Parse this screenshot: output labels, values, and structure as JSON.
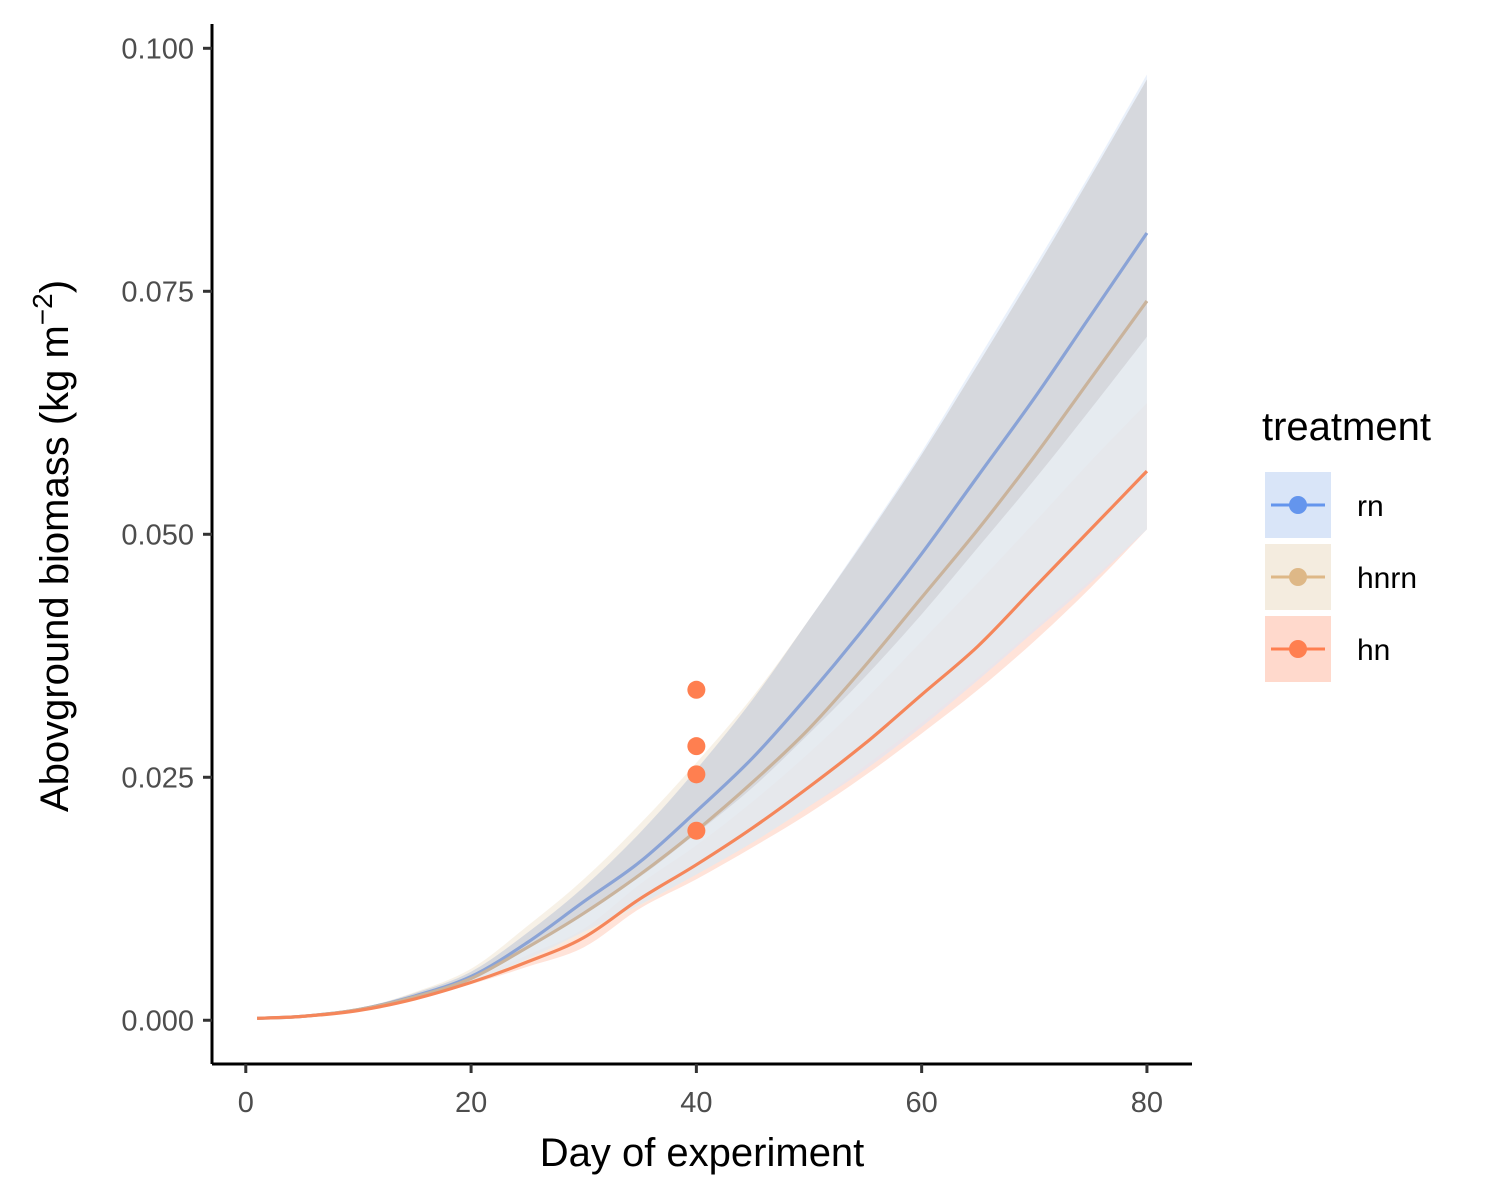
{
  "chart_data": {
    "type": "line",
    "xlabel": "Day of experiment",
    "ylabel_main": "Abovground biomass (kg m",
    "ylabel_sup": "−2",
    "ylabel_close": ")",
    "xlim": [
      -3,
      84
    ],
    "ylim": [
      -0.0045,
      0.1025
    ],
    "x_ticks": [
      0,
      20,
      40,
      60,
      80
    ],
    "x_tick_labels": [
      "0",
      "20",
      "40",
      "60",
      "80"
    ],
    "y_ticks": [
      0,
      0.025,
      0.05,
      0.075,
      0.1
    ],
    "y_tick_labels": [
      "0.000",
      "0.025",
      "0.050",
      "0.075",
      "0.100"
    ],
    "grid": false,
    "legend": {
      "title": "treatment",
      "placement": "right"
    },
    "x": [
      1,
      5,
      10,
      15,
      20,
      25,
      30,
      35,
      40,
      45,
      50,
      55,
      60,
      65,
      70,
      75,
      80
    ],
    "series": [
      {
        "name": "rn",
        "color": "#6495ED",
        "line_color": "#8AA3D6",
        "band_color": "#D9E5F8",
        "values": [
          0.0002,
          0.0004,
          0.0011,
          0.0025,
          0.0045,
          0.008,
          0.0122,
          0.0163,
          0.0215,
          0.027,
          0.0335,
          0.0405,
          0.048,
          0.056,
          0.064,
          0.0725,
          0.081
        ],
        "lower": [
          0.0002,
          0.0004,
          0.0011,
          0.0023,
          0.004,
          0.0063,
          0.0091,
          0.0119,
          0.015,
          0.0183,
          0.022,
          0.0258,
          0.0302,
          0.035,
          0.04,
          0.045,
          0.0505
        ],
        "upper": [
          0.0002,
          0.0004,
          0.0012,
          0.0028,
          0.005,
          0.009,
          0.0137,
          0.0193,
          0.0258,
          0.033,
          0.0412,
          0.0497,
          0.0585,
          0.068,
          0.0775,
          0.0872,
          0.0973
        ]
      },
      {
        "name": "hnrn",
        "color": "#DEB887",
        "line_color": "#C9B39C",
        "band_color": "#F4ECDF",
        "values": [
          0.0002,
          0.0004,
          0.0011,
          0.0024,
          0.0043,
          0.0075,
          0.011,
          0.015,
          0.0195,
          0.0245,
          0.03,
          0.0365,
          0.0435,
          0.0505,
          0.058,
          0.066,
          0.074
        ],
        "lower": [
          0.0002,
          0.0004,
          0.0011,
          0.0023,
          0.0039,
          0.0062,
          0.0088,
          0.0118,
          0.015,
          0.0183,
          0.022,
          0.0262,
          0.0306,
          0.0353,
          0.0403,
          0.0453,
          0.0505
        ],
        "upper": [
          0.0002,
          0.0004,
          0.0012,
          0.0029,
          0.0053,
          0.0097,
          0.0145,
          0.0202,
          0.0265,
          0.0333,
          0.0412,
          0.0495,
          0.0582,
          0.0675,
          0.077,
          0.0868,
          0.0968
        ]
      },
      {
        "name": "hn",
        "color": "#FF7F50",
        "line_color": "#F5865A",
        "band_color": "#FFD9CC",
        "values": [
          0.0002,
          0.0004,
          0.001,
          0.0022,
          0.0039,
          0.006,
          0.0085,
          0.0125,
          0.016,
          0.0198,
          0.024,
          0.0285,
          0.0335,
          0.0385,
          0.0445,
          0.0505,
          0.0565
        ],
        "lower": [
          0.0002,
          0.0004,
          0.001,
          0.0021,
          0.0037,
          0.0055,
          0.0075,
          0.0115,
          0.0145,
          0.0178,
          0.0213,
          0.0252,
          0.0295,
          0.034,
          0.039,
          0.0445,
          0.0505
        ],
        "upper": [
          0.0002,
          0.0004,
          0.0011,
          0.0024,
          0.0043,
          0.0067,
          0.0094,
          0.014,
          0.018,
          0.0225,
          0.0275,
          0.033,
          0.039,
          0.045,
          0.0512,
          0.0575,
          0.0635
        ]
      }
    ],
    "points": {
      "series": "hn",
      "color": "#FF7F50",
      "x": [
        40,
        40,
        40,
        40
      ],
      "y": [
        0.034,
        0.0282,
        0.0253,
        0.0195
      ]
    }
  }
}
